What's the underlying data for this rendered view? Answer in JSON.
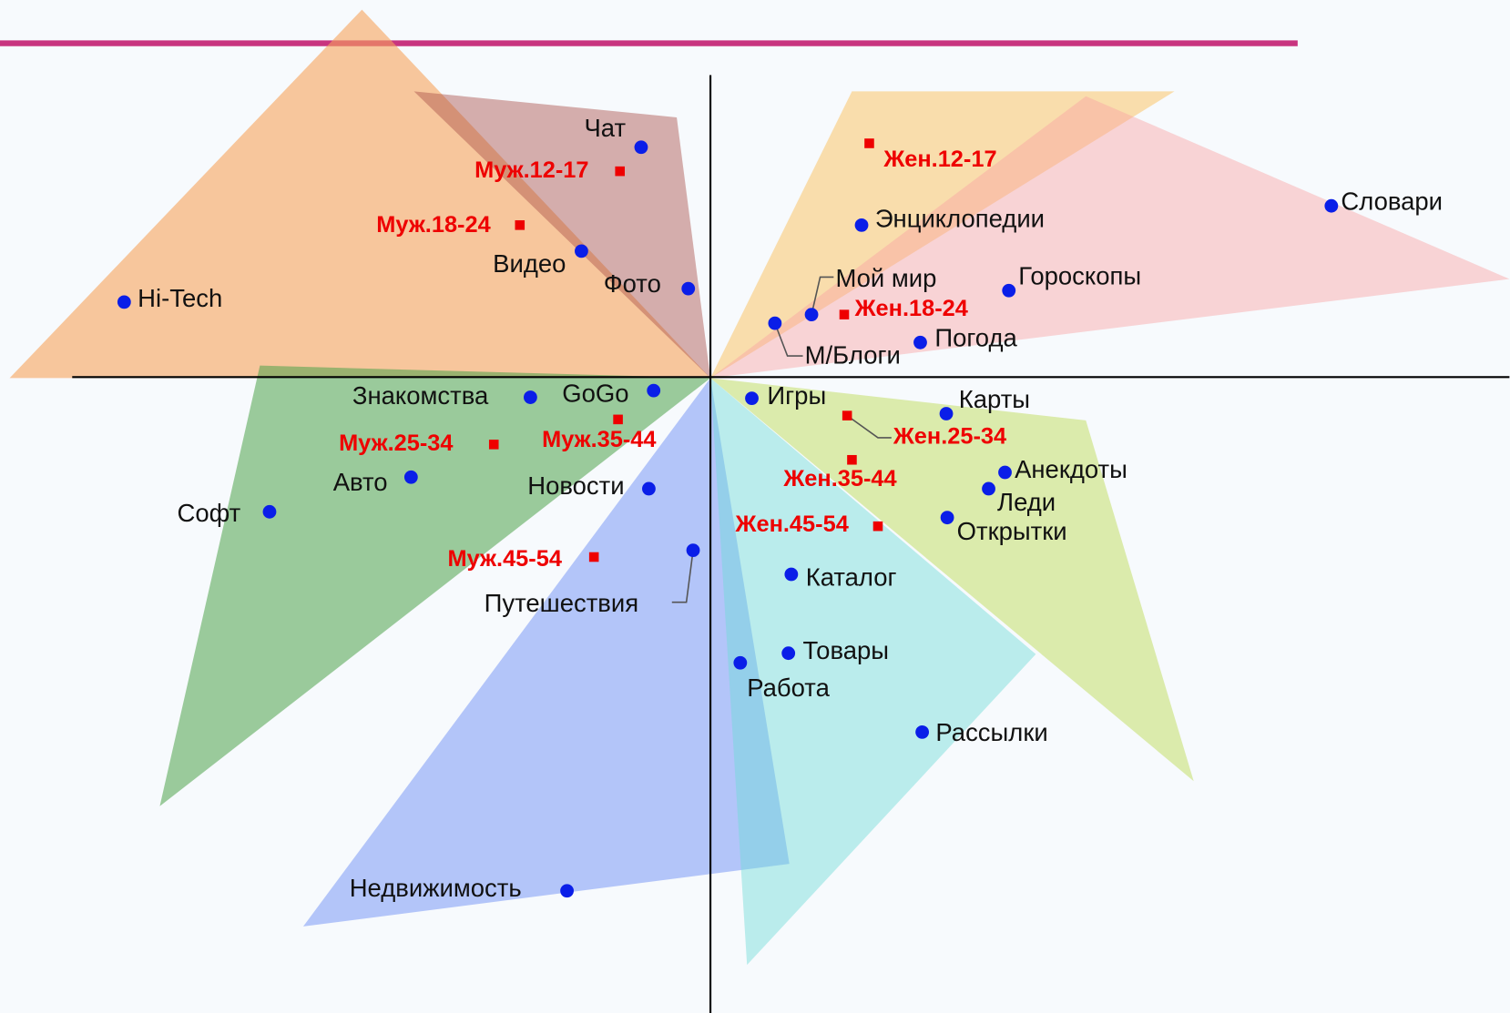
{
  "sites": [
    "Чат",
    "Видео",
    "Фото",
    "Hi-Tech",
    "Знакомства",
    "GoGo",
    "Авто",
    "Новости",
    "Софт",
    "Путешествия",
    "Недвижимость",
    "Игры",
    "Карты",
    "Анекдоты",
    "Леди",
    "Открытки",
    "Каталог",
    "Товары",
    "Работа",
    "Рассылки",
    "Энциклопедии",
    "Мой мир",
    "Гороскопы",
    "М/Блоги",
    "Погода",
    "Словари"
  ],
  "groups": [
    "Муж.12-17",
    "Муж.18-24",
    "Муж.25-34",
    "Муж.35-44",
    "Муж.45-54",
    "Жен.12-17",
    "Жен.18-24",
    "Жен.25-34",
    "Жен.35-44",
    "Жен.45-54"
  ]
}
